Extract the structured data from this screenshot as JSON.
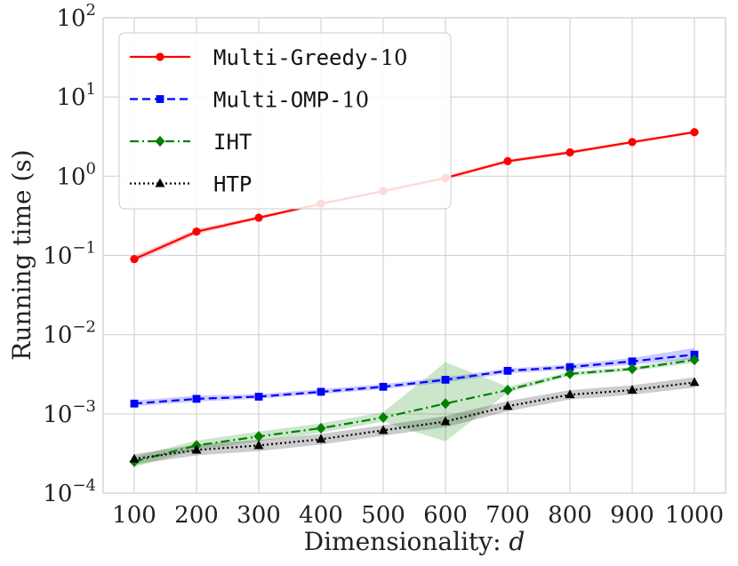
{
  "chart_data": {
    "type": "line",
    "title": "",
    "xlabel": "Dimensionality: d",
    "ylabel": "Running time (s)",
    "yscale": "log",
    "ylim": [
      0.0001,
      100
    ],
    "xlim": [
      50,
      1050
    ],
    "grid": true,
    "legend_position": "top-left",
    "x": [
      100,
      200,
      300,
      400,
      500,
      600,
      700,
      800,
      900,
      1000
    ],
    "x_tick_labels": [
      "100",
      "200",
      "300",
      "400",
      "500",
      "600",
      "700",
      "800",
      "900",
      "1000"
    ],
    "y_ticks": [
      {
        "value": 0.0001,
        "base": "10",
        "exp": "−4"
      },
      {
        "value": 0.001,
        "base": "10",
        "exp": "−3"
      },
      {
        "value": 0.01,
        "base": "10",
        "exp": "−2"
      },
      {
        "value": 0.1,
        "base": "10",
        "exp": "−1"
      },
      {
        "value": 1,
        "base": "10",
        "exp": "0"
      },
      {
        "value": 10,
        "base": "10",
        "exp": "1"
      },
      {
        "value": 100,
        "base": "10",
        "exp": "2"
      }
    ],
    "series": [
      {
        "name": "Multi-Greedy-10",
        "legend_text": "Multi-Greedy-",
        "legend_num": "10",
        "color": "#ff0000",
        "dash": "",
        "marker": "circle",
        "values": [
          0.09,
          0.2,
          0.3,
          0.45,
          0.65,
          0.95,
          1.55,
          2.0,
          2.7,
          3.6
        ],
        "lower": [
          0.082,
          0.185,
          0.285,
          0.43,
          0.62,
          0.9,
          1.47,
          1.9,
          2.58,
          3.45
        ],
        "upper": [
          0.099,
          0.215,
          0.315,
          0.47,
          0.68,
          1.0,
          1.63,
          2.1,
          2.82,
          3.75
        ]
      },
      {
        "name": "Multi-OMP-10",
        "legend_text": "Multi-OMP-",
        "legend_num": "10",
        "color": "#0000ff",
        "dash": "9,5",
        "marker": "square",
        "values": [
          0.00135,
          0.00155,
          0.00165,
          0.0019,
          0.0022,
          0.0027,
          0.0035,
          0.0039,
          0.0046,
          0.0056
        ],
        "lower": [
          0.00125,
          0.00143,
          0.00155,
          0.00178,
          0.00205,
          0.0025,
          0.00325,
          0.00362,
          0.0042,
          0.0049
        ],
        "upper": [
          0.00148,
          0.0017,
          0.00178,
          0.00205,
          0.00238,
          0.0029,
          0.00375,
          0.0042,
          0.0051,
          0.0068
        ]
      },
      {
        "name": "IHT",
        "legend_text": "IHT",
        "legend_num": "",
        "color": "#008000",
        "dash": "10,4,2,4",
        "marker": "diamond",
        "values": [
          0.00025,
          0.0004,
          0.00052,
          0.00066,
          0.0009,
          0.00135,
          0.002,
          0.0032,
          0.0037,
          0.0048
        ],
        "lower": [
          0.000215,
          0.00035,
          0.00045,
          0.00058,
          0.0008,
          0.00045,
          0.00185,
          0.003,
          0.0035,
          0.0044
        ],
        "upper": [
          0.00029,
          0.00046,
          0.0006,
          0.00076,
          0.00105,
          0.0045,
          0.0022,
          0.0034,
          0.0039,
          0.0053
        ]
      },
      {
        "name": "HTP",
        "legend_text": "HTP",
        "legend_num": "",
        "color": "#000000",
        "dash": "2,3",
        "marker": "triangle",
        "values": [
          0.00027,
          0.00035,
          0.0004,
          0.00048,
          0.00062,
          0.0008,
          0.00125,
          0.00175,
          0.002,
          0.0025
        ],
        "lower": [
          0.00023,
          0.0003,
          0.00034,
          0.00041,
          0.00053,
          0.00068,
          0.00108,
          0.00152,
          0.00175,
          0.00215
        ],
        "upper": [
          0.00031,
          0.00041,
          0.00047,
          0.00056,
          0.00072,
          0.00094,
          0.00145,
          0.002,
          0.0023,
          0.0029
        ]
      }
    ]
  }
}
